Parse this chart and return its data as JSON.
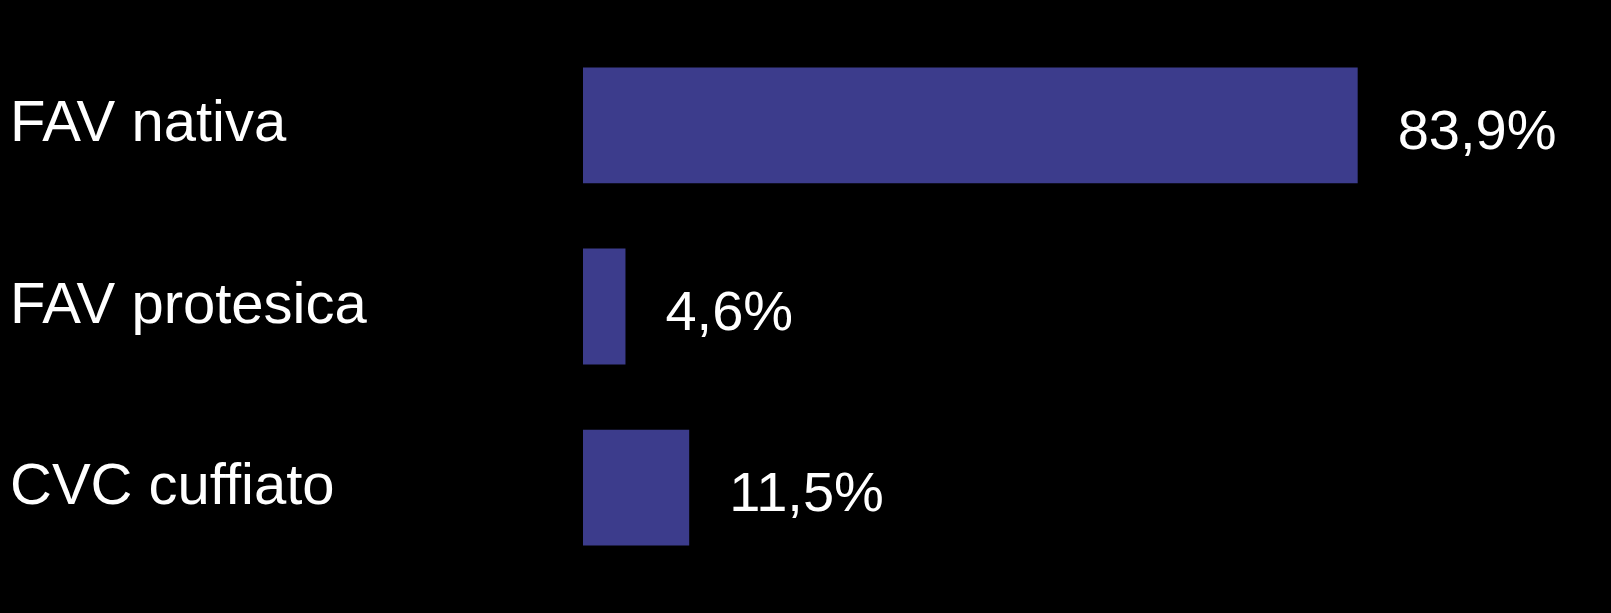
{
  "chart_data": {
    "type": "bar",
    "orientation": "horizontal",
    "categories": [
      "FAV nativa",
      "FAV protesica",
      "CVC cuffiato"
    ],
    "values": [
      83.9,
      4.6,
      11.5
    ],
    "color": "#3c3c8c",
    "value_labels": [
      "83,9%",
      "4,6%",
      "11,5%"
    ]
  }
}
